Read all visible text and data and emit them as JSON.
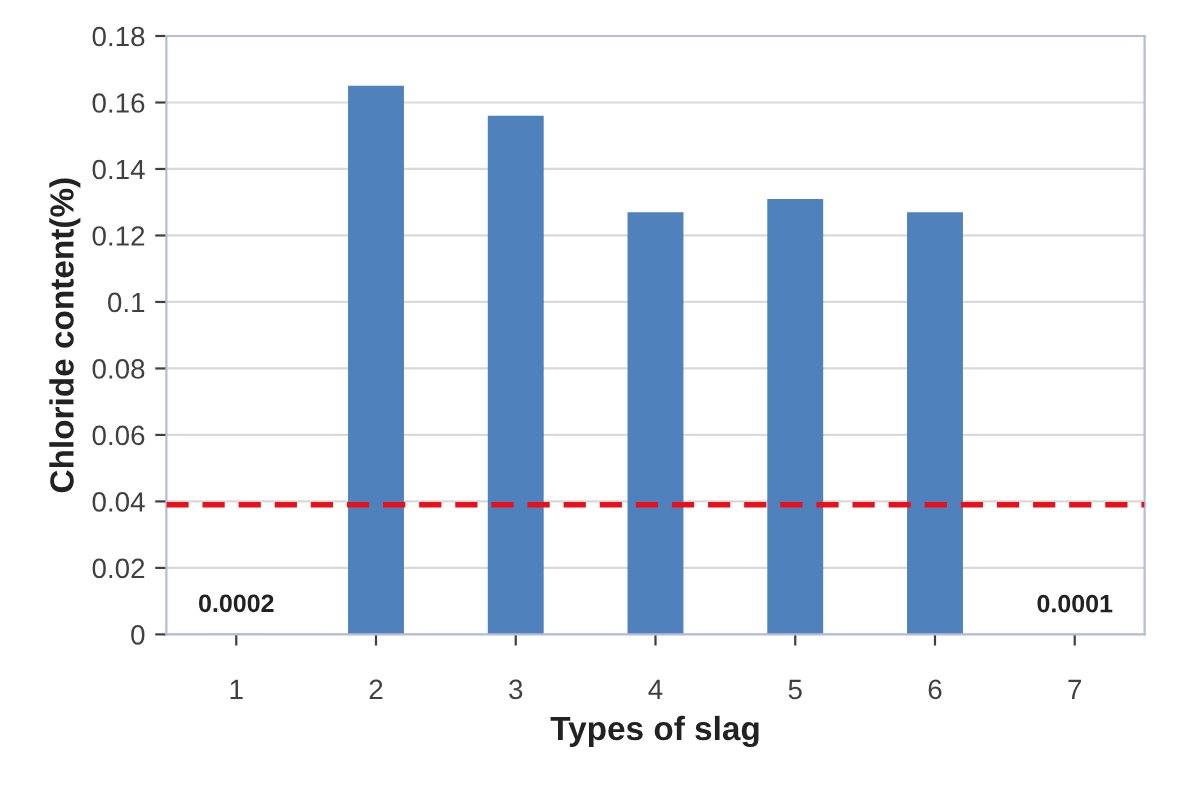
{
  "chart_data": {
    "type": "bar",
    "xlabel": "Types of slag",
    "ylabel": "Chloride content(%)",
    "categories": [
      "1",
      "2",
      "3",
      "4",
      "5",
      "6",
      "7"
    ],
    "values": [
      0.0002,
      0.165,
      0.156,
      0.127,
      0.131,
      0.127,
      0.0001
    ],
    "value_labels": [
      "0.0002",
      null,
      null,
      null,
      null,
      null,
      "0.0001"
    ],
    "color": "#4f81bd",
    "ylim": [
      0,
      0.18
    ],
    "yticks": [
      0,
      0.02,
      0.04,
      0.06,
      0.08,
      0.1,
      0.12,
      0.14,
      0.16,
      0.18
    ],
    "grid": "y",
    "legend": false,
    "ref_lines": [
      {
        "axis": "y",
        "value": 0.039,
        "color": "#e8101a",
        "line_style": "dashed"
      }
    ]
  }
}
